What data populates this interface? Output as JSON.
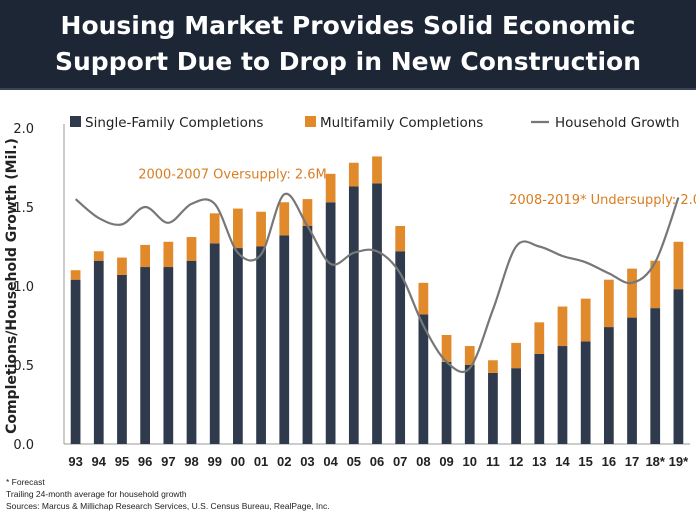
{
  "title_line1": "Housing Market Provides Solid Economic",
  "title_line2": "Support Due to Drop in New Construction",
  "footnotes": [
    "* Forecast",
    "Trailing 24-month average for household growth",
    "Sources: Marcus & Millichap Research Services, U.S. Census Bureau, RealPage, Inc."
  ],
  "colors": {
    "single_family": "#2f3a4c",
    "multifamily": "#e08a2c",
    "household": "#777777",
    "annotation": "#d87e22",
    "header_bg": "#1d2635"
  },
  "chart_data": {
    "type": "bar",
    "stacked": true,
    "ylabel": "Completions/Household Growth (Mil.)",
    "ylim": [
      0,
      2.0
    ],
    "yticks": [
      "0.0",
      "0.5",
      "1.0",
      "1.5",
      "2.0"
    ],
    "categories": [
      "93",
      "94",
      "95",
      "96",
      "97",
      "98",
      "99",
      "00",
      "01",
      "02",
      "03",
      "04",
      "05",
      "06",
      "07",
      "08",
      "09",
      "10",
      "11",
      "12",
      "13",
      "14",
      "15",
      "16",
      "17",
      "18*",
      "19*"
    ],
    "series": [
      {
        "name": "Single-Family Completions",
        "type": "bar",
        "values": [
          1.04,
          1.16,
          1.07,
          1.12,
          1.12,
          1.16,
          1.27,
          1.24,
          1.25,
          1.32,
          1.38,
          1.53,
          1.63,
          1.65,
          1.22,
          0.82,
          0.52,
          0.5,
          0.45,
          0.48,
          0.57,
          0.62,
          0.65,
          0.74,
          0.8,
          0.86,
          0.98
        ]
      },
      {
        "name": "Multifamily Completions",
        "type": "bar",
        "values": [
          0.06,
          0.06,
          0.11,
          0.14,
          0.16,
          0.15,
          0.19,
          0.25,
          0.22,
          0.21,
          0.17,
          0.18,
          0.15,
          0.17,
          0.16,
          0.2,
          0.17,
          0.12,
          0.08,
          0.16,
          0.2,
          0.25,
          0.27,
          0.3,
          0.31,
          0.3,
          0.3
        ]
      },
      {
        "name": "Household Growth",
        "type": "line",
        "values": [
          1.55,
          1.43,
          1.39,
          1.5,
          1.4,
          1.52,
          1.52,
          1.21,
          1.2,
          1.58,
          1.38,
          1.14,
          1.21,
          1.22,
          1.08,
          0.75,
          0.52,
          0.48,
          0.85,
          1.25,
          1.25,
          1.19,
          1.15,
          1.08,
          1.02,
          1.15,
          1.56
        ]
      }
    ],
    "annotations": [
      {
        "text": "2000-2007 Oversupply: 2.6M",
        "x": "96",
        "y": 1.68
      },
      {
        "text": "2008-2019* Undersupply: 2.0M",
        "x": "12",
        "y": 1.52
      }
    ],
    "legend": "top",
    "grid": false
  }
}
